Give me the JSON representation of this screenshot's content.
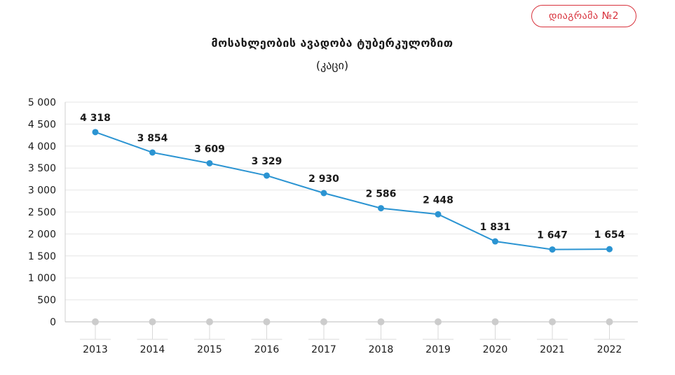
{
  "badge": "დიაგრამა №2",
  "colors": {
    "accent": "#d8323c",
    "line": "#2b94d2",
    "grid": "#e6e6e6",
    "axis_dot": "#cccccc"
  },
  "chart_data": {
    "type": "line",
    "title": "მოსახლეობის ავადობა ტუბერკულოზით",
    "subtitle": "(კაცი)",
    "categories": [
      "2013",
      "2014",
      "2015",
      "2016",
      "2017",
      "2018",
      "2019",
      "2020",
      "2021",
      "2022"
    ],
    "values": [
      4318,
      3854,
      3609,
      3329,
      2930,
      2586,
      2448,
      1831,
      1647,
      1654
    ],
    "value_labels": [
      "4 318",
      "3 854",
      "3 609",
      "3 329",
      "2 930",
      "2 586",
      "2 448",
      "1 831",
      "1 647",
      "1 654"
    ],
    "y_ticks": [
      0,
      500,
      1000,
      1500,
      2000,
      2500,
      3000,
      3500,
      4000,
      4500,
      5000
    ],
    "y_tick_labels": [
      "0",
      "500",
      "1 000",
      "1 500",
      "2 000",
      "2 500",
      "3 000",
      "3 500",
      "4 000",
      "4 500",
      "5 000"
    ],
    "ylim": [
      0,
      5000
    ],
    "grid": true,
    "legend": "none"
  }
}
